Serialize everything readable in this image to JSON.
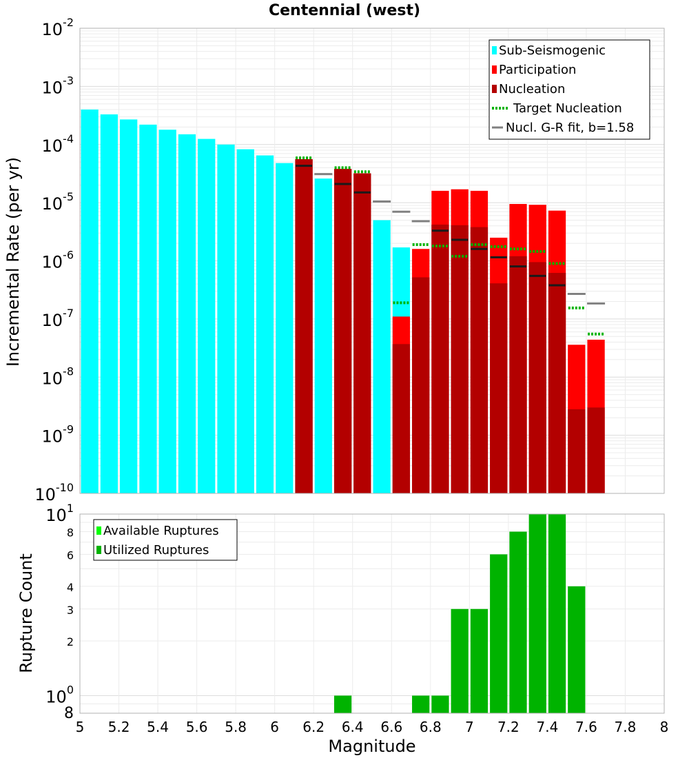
{
  "chart_data": [
    {
      "type": "bar",
      "title": "Centennial (west)",
      "xlabel": "",
      "ylabel": "Incremental Rate (per yr)",
      "yscale": "log",
      "xlim": [
        5,
        8
      ],
      "ylim": [
        1e-10,
        0.01
      ],
      "y_tick_labels": [
        {
          "base": "10",
          "exp": "-2"
        },
        {
          "base": "10",
          "exp": "-3"
        },
        {
          "base": "10",
          "exp": "-4"
        },
        {
          "base": "10",
          "exp": "-5"
        },
        {
          "base": "10",
          "exp": "-6"
        },
        {
          "base": "10",
          "exp": "-7"
        },
        {
          "base": "10",
          "exp": "-8"
        },
        {
          "base": "10",
          "exp": "-9"
        },
        {
          "base": "10",
          "exp": "-10"
        }
      ],
      "legend_position": "top-right",
      "legend": [
        {
          "label": "Sub-Seismogenic",
          "color": "#00ffff",
          "kind": "box"
        },
        {
          "label": "Participation",
          "color": "#ff0000",
          "kind": "box"
        },
        {
          "label": "Nucleation",
          "color": "#b30000",
          "kind": "box"
        },
        {
          "label": "Target Nucleation",
          "color": "#00b300",
          "kind": "dotted"
        },
        {
          "label": "Nucl. G-R fit, b=1.58",
          "color": "#808080",
          "kind": "line"
        }
      ],
      "sub_seismogenic": {
        "x": [
          5.05,
          5.15,
          5.25,
          5.35,
          5.45,
          5.55,
          5.65,
          5.75,
          5.85,
          5.95,
          6.05,
          6.15,
          6.25,
          6.35,
          6.45,
          6.55,
          6.65
        ],
        "values": [
          0.0004,
          0.00033,
          0.00027,
          0.00022,
          0.00018,
          0.00015,
          0.000125,
          0.0001,
          8.3e-05,
          6.5e-05,
          4.8e-05,
          2e-05,
          2.6e-05,
          1.6e-05,
          1.2e-05,
          5e-06,
          1.7e-06
        ]
      },
      "participation": {
        "x": [
          6.15,
          6.35,
          6.45,
          6.65,
          6.75,
          6.85,
          6.95,
          7.05,
          7.15,
          7.25,
          7.35,
          7.45,
          7.55,
          7.65
        ],
        "values": [
          5.6e-05,
          3.8e-05,
          3.2e-05,
          1.1e-07,
          1.6e-06,
          1.6e-05,
          1.7e-05,
          1.6e-05,
          2.5e-06,
          9.5e-06,
          9.2e-06,
          7.3e-06,
          3.6e-08,
          4.4e-08
        ]
      },
      "nucleation": {
        "x": [
          6.15,
          6.35,
          6.45,
          6.65,
          6.75,
          6.85,
          6.95,
          7.05,
          7.15,
          7.25,
          7.35,
          7.45,
          7.55,
          7.65
        ],
        "values": [
          5.6e-05,
          3.8e-05,
          3.2e-05,
          3.7e-08,
          5.2e-07,
          4.2e-06,
          4.1e-06,
          3.8e-06,
          4.1e-07,
          1.2e-06,
          9.5e-07,
          6.2e-07,
          2.8e-09,
          3e-09
        ]
      },
      "target_nucleation": {
        "x": [
          6.15,
          6.35,
          6.45,
          6.65,
          6.75,
          6.85,
          6.95,
          7.05,
          7.15,
          7.25,
          7.35,
          7.45,
          7.55,
          7.65
        ],
        "values": [
          5.9e-05,
          4e-05,
          3.4e-05,
          1.9e-07,
          1.9e-06,
          1.8e-06,
          1.2e-06,
          1.9e-06,
          1.75e-06,
          1.6e-06,
          1.45e-06,
          9e-07,
          1.55e-07,
          5.5e-08
        ]
      },
      "nucleation_marks": {
        "x": [
          6.15,
          6.35,
          6.45,
          6.85,
          6.95,
          7.05,
          7.15,
          7.25,
          7.35,
          7.45
        ],
        "values": [
          4.3e-05,
          2.1e-05,
          1.5e-05,
          3.3e-06,
          2.3e-06,
          1.6e-06,
          1.15e-06,
          8e-07,
          5.5e-07,
          3.8e-07
        ]
      },
      "gr_fit": {
        "x": [
          6.25,
          6.55,
          6.65,
          6.75,
          7.55,
          7.65
        ],
        "values": [
          3.1e-05,
          1.05e-05,
          7e-06,
          4.8e-06,
          2.7e-07,
          1.85e-07
        ]
      }
    },
    {
      "type": "bar",
      "title": "",
      "xlabel": "Magnitude",
      "ylabel": "Rupture Count",
      "yscale": "log",
      "xlim": [
        5,
        8
      ],
      "ylim": [
        0.8,
        10
      ],
      "x_ticks": [
        "5",
        "5.2",
        "5.4",
        "5.6",
        "5.8",
        "6",
        "6.2",
        "6.4",
        "6.6",
        "6.8",
        "7",
        "7.2",
        "7.4",
        "7.6",
        "7.8",
        "8"
      ],
      "y_decade_labels": [
        {
          "value": 10,
          "base": "10",
          "exp": "1"
        },
        {
          "value": 1,
          "base": "10",
          "exp": "0"
        }
      ],
      "y_minor_labels": [
        {
          "value": 8,
          "label": "8"
        },
        {
          "value": 6,
          "label": "6"
        },
        {
          "value": 4,
          "label": "4"
        },
        {
          "value": 3,
          "label": "3"
        },
        {
          "value": 2,
          "label": "2"
        },
        {
          "value": 0.8,
          "label": "8"
        }
      ],
      "legend_position": "top-left",
      "legend": [
        {
          "label": "Available Ruptures",
          "color": "#00ff00"
        },
        {
          "label": "Utilized Ruptures",
          "color": "#00b300"
        }
      ],
      "utilized": {
        "x": [
          6.35,
          6.75,
          6.85,
          6.95,
          7.05,
          7.15,
          7.25,
          7.35,
          7.45,
          7.55
        ],
        "values": [
          1,
          1,
          1,
          3,
          3,
          6,
          8,
          10,
          10,
          4
        ]
      }
    }
  ]
}
